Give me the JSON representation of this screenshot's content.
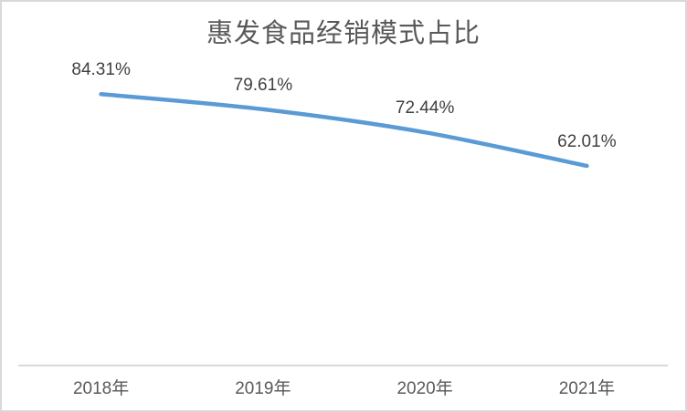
{
  "chart_data": {
    "type": "line",
    "title": "惠发食品经销模式占比",
    "categories": [
      "2018年",
      "2019年",
      "2020年",
      "2021年"
    ],
    "values": [
      84.31,
      79.61,
      72.44,
      62.01
    ],
    "data_labels": [
      "84.31%",
      "79.61%",
      "72.44%",
      "62.01%"
    ],
    "xlabel": "",
    "ylabel": "",
    "ylim": [
      0,
      96
    ],
    "grid": false,
    "legend": false,
    "smoothed_line": true,
    "colors": {
      "line": "#5B9BD5",
      "title_text": "#595959",
      "data_label_text": "#404040",
      "axis_label_text": "#595959",
      "axis_line": "#d9d9d9",
      "frame_border": "#d9d9d9",
      "background": "#ffffff"
    }
  }
}
